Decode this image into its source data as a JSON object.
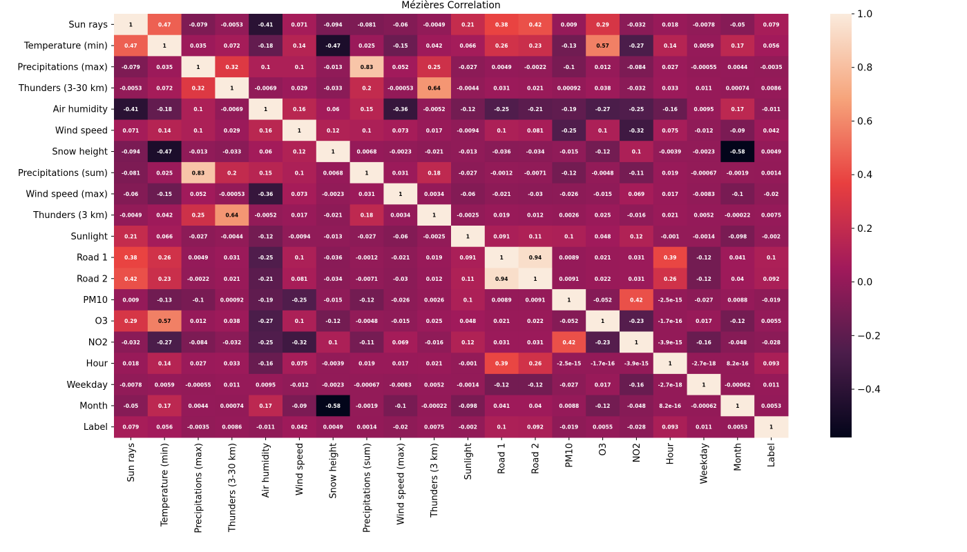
{
  "chart_data": {
    "type": "heatmap",
    "title": "Mézières Correlation",
    "xlabel": "",
    "ylabel": "",
    "labels": [
      "Sun rays",
      "Temperature (min)",
      "Precipitations (max)",
      "Thunders (3-30 km)",
      "Air humidity",
      "Wind speed",
      "Snow height",
      "Precipitations (sum)",
      "Wind speed (max)",
      "Thunders (3 km)",
      "Sunlight",
      "Road 1",
      "Road 2",
      "PM10",
      "O3",
      "NO2",
      "Hour",
      "Weekday",
      "Month",
      "Label"
    ],
    "annotations": [
      [
        "1",
        "0.47",
        "-0.079",
        "-0.0053",
        "-0.41",
        "0.071",
        "-0.094",
        "-0.081",
        "-0.06",
        "-0.0049",
        "0.21",
        "0.38",
        "0.42",
        "0.009",
        "0.29",
        "-0.032",
        "0.018",
        "-0.0078",
        "-0.05",
        "0.079"
      ],
      [
        "0.47",
        "1",
        "0.035",
        "0.072",
        "-0.18",
        "0.14",
        "-0.47",
        "0.025",
        "-0.15",
        "0.042",
        "0.066",
        "0.26",
        "0.23",
        "-0.13",
        "0.57",
        "-0.27",
        "0.14",
        "0.0059",
        "0.17",
        "0.056"
      ],
      [
        "-0.079",
        "0.035",
        "1",
        "0.32",
        "0.1",
        "0.1",
        "-0.013",
        "0.83",
        "0.052",
        "0.25",
        "-0.027",
        "0.0049",
        "-0.0022",
        "-0.1",
        "0.012",
        "-0.084",
        "0.027",
        "-0.00055",
        "0.0044",
        "-0.0035"
      ],
      [
        "-0.0053",
        "0.072",
        "0.32",
        "1",
        "-0.0069",
        "0.029",
        "-0.033",
        "0.2",
        "-0.00053",
        "0.64",
        "-0.0044",
        "0.031",
        "0.021",
        "0.00092",
        "0.038",
        "-0.032",
        "0.033",
        "0.011",
        "0.00074",
        "0.0086"
      ],
      [
        "-0.41",
        "-0.18",
        "0.1",
        "-0.0069",
        "1",
        "0.16",
        "0.06",
        "0.15",
        "-0.36",
        "-0.0052",
        "-0.12",
        "-0.25",
        "-0.21",
        "-0.19",
        "-0.27",
        "-0.25",
        "-0.16",
        "0.0095",
        "0.17",
        "-0.011"
      ],
      [
        "0.071",
        "0.14",
        "0.1",
        "0.029",
        "0.16",
        "1",
        "0.12",
        "0.1",
        "0.073",
        "0.017",
        "-0.0094",
        "0.1",
        "0.081",
        "-0.25",
        "0.1",
        "-0.32",
        "0.075",
        "-0.012",
        "-0.09",
        "0.042"
      ],
      [
        "-0.094",
        "-0.47",
        "-0.013",
        "-0.033",
        "0.06",
        "0.12",
        "1",
        "0.0068",
        "-0.0023",
        "-0.021",
        "-0.013",
        "-0.036",
        "-0.034",
        "-0.015",
        "-0.12",
        "0.1",
        "-0.0039",
        "-0.0023",
        "-0.58",
        "0.0049"
      ],
      [
        "-0.081",
        "0.025",
        "0.83",
        "0.2",
        "0.15",
        "0.1",
        "0.0068",
        "1",
        "0.031",
        "0.18",
        "-0.027",
        "-0.0012",
        "-0.0071",
        "-0.12",
        "-0.0048",
        "-0.11",
        "0.019",
        "-0.00067",
        "-0.0019",
        "0.0014"
      ],
      [
        "-0.06",
        "-0.15",
        "0.052",
        "-0.00053",
        "-0.36",
        "0.073",
        "-0.0023",
        "0.031",
        "1",
        "0.0034",
        "-0.06",
        "-0.021",
        "-0.03",
        "-0.026",
        "-0.015",
        "0.069",
        "0.017",
        "-0.0083",
        "-0.1",
        "-0.02"
      ],
      [
        "-0.0049",
        "0.042",
        "0.25",
        "0.64",
        "-0.0052",
        "0.017",
        "-0.021",
        "0.18",
        "0.0034",
        "1",
        "-0.0025",
        "0.019",
        "0.012",
        "0.0026",
        "0.025",
        "-0.016",
        "0.021",
        "0.0052",
        "-0.00022",
        "0.0075"
      ],
      [
        "0.21",
        "0.066",
        "-0.027",
        "-0.0044",
        "-0.12",
        "-0.0094",
        "-0.013",
        "-0.027",
        "-0.06",
        "-0.0025",
        "1",
        "0.091",
        "0.11",
        "0.1",
        "0.048",
        "0.12",
        "-0.001",
        "-0.0014",
        "-0.098",
        "-0.002"
      ],
      [
        "0.38",
        "0.26",
        "0.0049",
        "0.031",
        "-0.25",
        "0.1",
        "-0.036",
        "-0.0012",
        "-0.021",
        "0.019",
        "0.091",
        "1",
        "0.94",
        "0.0089",
        "0.021",
        "0.031",
        "0.39",
        "-0.12",
        "0.041",
        "0.1"
      ],
      [
        "0.42",
        "0.23",
        "-0.0022",
        "0.021",
        "-0.21",
        "0.081",
        "-0.034",
        "-0.0071",
        "-0.03",
        "0.012",
        "0.11",
        "0.94",
        "1",
        "0.0091",
        "0.022",
        "0.031",
        "0.26",
        "-0.12",
        "0.04",
        "0.092"
      ],
      [
        "0.009",
        "-0.13",
        "-0.1",
        "0.00092",
        "-0.19",
        "-0.25",
        "-0.015",
        "-0.12",
        "-0.026",
        "0.0026",
        "0.1",
        "0.0089",
        "0.0091",
        "1",
        "-0.052",
        "0.42",
        "-2.5e-15",
        "-0.027",
        "0.0088",
        "-0.019"
      ],
      [
        "0.29",
        "0.57",
        "0.012",
        "0.038",
        "-0.27",
        "0.1",
        "-0.12",
        "-0.0048",
        "-0.015",
        "0.025",
        "0.048",
        "0.021",
        "0.022",
        "-0.052",
        "1",
        "-0.23",
        "-1.7e-16",
        "0.017",
        "-0.12",
        "0.0055"
      ],
      [
        "-0.032",
        "-0.27",
        "-0.084",
        "-0.032",
        "-0.25",
        "-0.32",
        "0.1",
        "-0.11",
        "0.069",
        "-0.016",
        "0.12",
        "0.031",
        "0.031",
        "0.42",
        "-0.23",
        "1",
        "-3.9e-15",
        "-0.16",
        "-0.048",
        "-0.028"
      ],
      [
        "0.018",
        "0.14",
        "0.027",
        "0.033",
        "-0.16",
        "0.075",
        "-0.0039",
        "0.019",
        "0.017",
        "0.021",
        "-0.001",
        "0.39",
        "0.26",
        "-2.5e-15",
        "-1.7e-16",
        "-3.9e-15",
        "1",
        "-2.7e-18",
        "8.2e-16",
        "0.093"
      ],
      [
        "-0.0078",
        "0.0059",
        "-0.00055",
        "0.011",
        "0.0095",
        "-0.012",
        "-0.0023",
        "-0.00067",
        "-0.0083",
        "0.0052",
        "-0.0014",
        "-0.12",
        "-0.12",
        "-0.027",
        "0.017",
        "-0.16",
        "-2.7e-18",
        "1",
        "-0.00062",
        "0.011"
      ],
      [
        "-0.05",
        "0.17",
        "0.0044",
        "0.00074",
        "0.17",
        "-0.09",
        "-0.58",
        "-0.0019",
        "-0.1",
        "-0.00022",
        "-0.098",
        "0.041",
        "0.04",
        "0.0088",
        "-0.12",
        "-0.048",
        "8.2e-16",
        "-0.00062",
        "1",
        "0.0053"
      ],
      [
        "0.079",
        "0.056",
        "-0.0035",
        "0.0086",
        "-0.011",
        "0.042",
        "0.0049",
        "0.0014",
        "-0.02",
        "0.0075",
        "-0.002",
        "0.1",
        "0.092",
        "-0.019",
        "0.0055",
        "-0.028",
        "0.093",
        "0.011",
        "0.0053",
        "1"
      ]
    ],
    "colorbar": {
      "range": [
        -0.58,
        1.0
      ],
      "ticks": [
        -0.4,
        -0.2,
        0.0,
        0.2,
        0.4,
        0.6,
        0.8,
        1.0
      ],
      "tick_labels": [
        "−0.4",
        "−0.2",
        "0.0",
        "0.2",
        "0.4",
        "0.6",
        "0.8",
        "1.0"
      ]
    },
    "colormap_stops": [
      "#03051a",
      "#4c1d4b",
      "#a11a5b",
      "#e83f3f",
      "#f6a47b",
      "#faebdd"
    ]
  }
}
